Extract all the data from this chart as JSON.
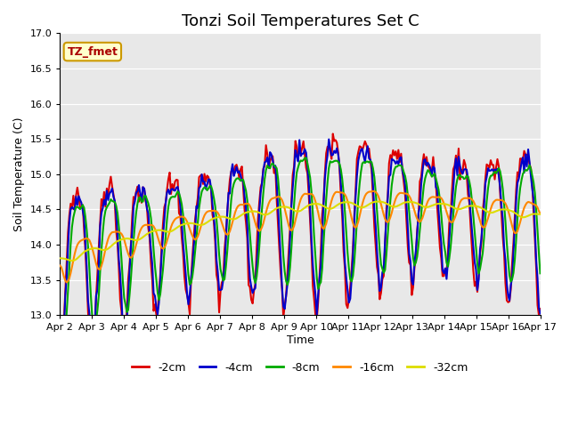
{
  "title": "Tonzi Soil Temperatures Set C",
  "xlabel": "Time",
  "ylabel": "Soil Temperature (C)",
  "ylim": [
    13.0,
    17.0
  ],
  "yticks": [
    13.0,
    13.5,
    14.0,
    14.5,
    15.0,
    15.5,
    16.0,
    16.5,
    17.0
  ],
  "xlim_days": [
    0,
    15
  ],
  "xtick_labels": [
    "Apr 2",
    "Apr 3",
    "Apr 4",
    "Apr 5",
    "Apr 6",
    "Apr 7",
    "Apr 8",
    "Apr 9",
    "Apr 10",
    "Apr 11",
    "Apr 12",
    "Apr 13",
    "Apr 14",
    "Apr 15",
    "Apr 16",
    "Apr 17"
  ],
  "annotation_text": "TZ_fmet",
  "annotation_facecolor": "#ffffcc",
  "annotation_edgecolor": "#cc9900",
  "line_colors": [
    "#dd0000",
    "#0000cc",
    "#00aa00",
    "#ff8800",
    "#dddd00"
  ],
  "line_labels": [
    "-2cm",
    "-4cm",
    "-8cm",
    "-16cm",
    "-32cm"
  ],
  "line_widths": [
    1.5,
    1.5,
    1.5,
    1.5,
    1.5
  ],
  "background_color": "#e8e8e8",
  "fig_facecolor": "#ffffff",
  "title_fontsize": 13,
  "axis_fontsize": 9,
  "tick_fontsize": 8,
  "legend_fontsize": 9
}
